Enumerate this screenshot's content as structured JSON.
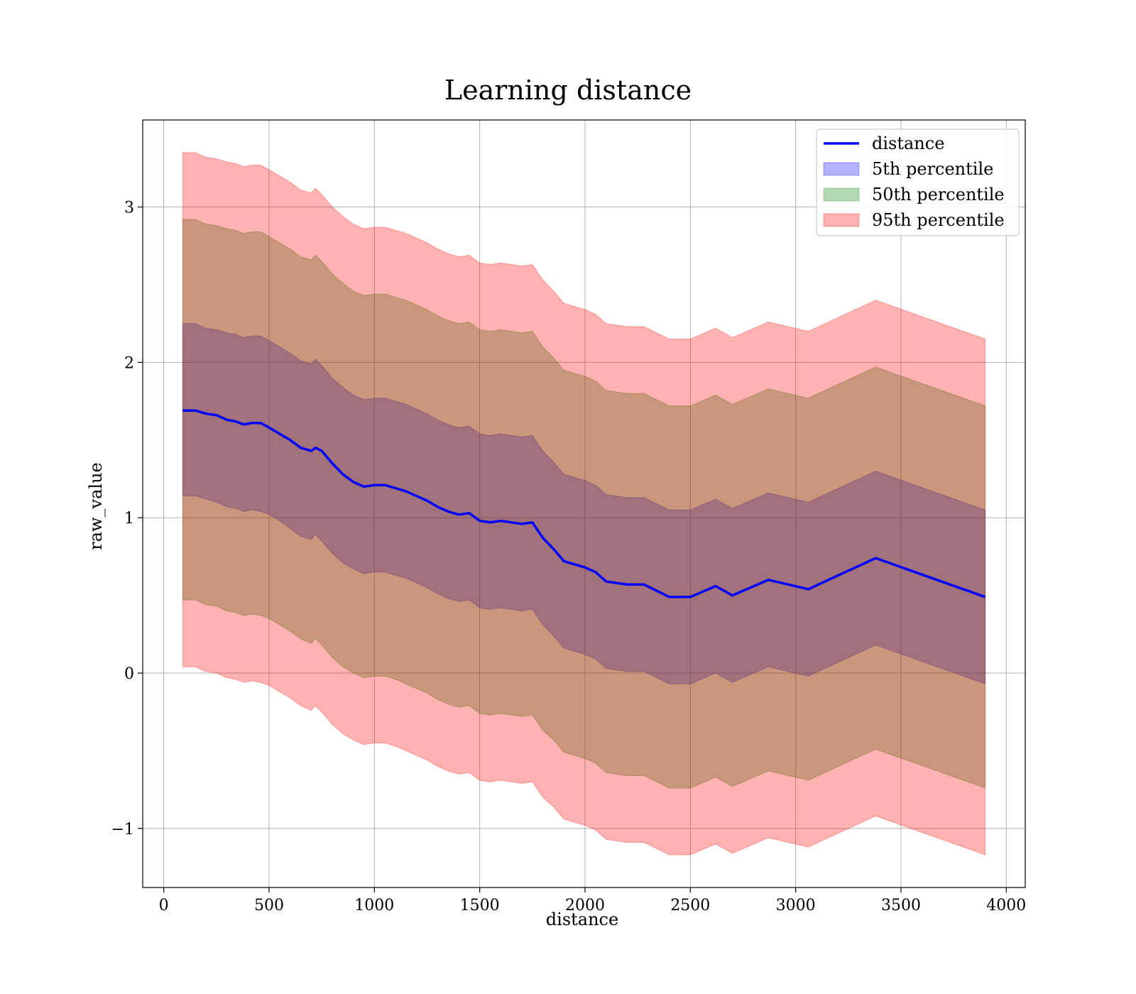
{
  "chart_data": {
    "type": "area",
    "title": "Learning distance",
    "xlabel": "distance",
    "ylabel": "raw_value",
    "xlim": [
      -100,
      4090
    ],
    "ylim": [
      -1.38,
      3.56
    ],
    "grid": true,
    "legend_position": "upper right",
    "x_ticks": [
      0,
      500,
      1000,
      1500,
      2000,
      2500,
      3000,
      3500,
      4000
    ],
    "x_tick_labels": [
      "0",
      "500",
      "1000",
      "1500",
      "2000",
      "2500",
      "3000",
      "3500",
      "4000"
    ],
    "y_ticks": [
      -1,
      0,
      1,
      2,
      3
    ],
    "y_tick_labels": [
      "−1",
      "0",
      "1",
      "2",
      "3"
    ],
    "colors": {
      "line": "#0000ff",
      "band_5th": "#0000ff",
      "band_50th": "#008000",
      "band_95th": "#ff0000"
    },
    "legend": [
      {
        "key": "distance",
        "label": "distance",
        "kind": "line",
        "color": "#0000ff"
      },
      {
        "key": "p5",
        "label": "5th percentile",
        "kind": "patch",
        "color": "#0000ff"
      },
      {
        "key": "p50",
        "label": "50th percentile",
        "kind": "patch",
        "color": "#008000"
      },
      {
        "key": "p95",
        "label": "95th percentile",
        "kind": "patch",
        "color": "#ff0000"
      }
    ],
    "x": [
      90,
      150,
      200,
      250,
      300,
      340,
      380,
      420,
      460,
      500,
      550,
      600,
      650,
      700,
      720,
      750,
      800,
      850,
      900,
      950,
      1000,
      1050,
      1100,
      1150,
      1200,
      1250,
      1300,
      1350,
      1400,
      1450,
      1500,
      1550,
      1600,
      1650,
      1700,
      1750,
      1800,
      1850,
      1900,
      1950,
      2000,
      2050,
      2100,
      2150,
      2200,
      2280,
      2400,
      2500,
      2620,
      2700,
      2870,
      3060,
      3380,
      3900
    ],
    "series": [
      {
        "name": "distance",
        "values": [
          1.69,
          1.69,
          1.67,
          1.66,
          1.63,
          1.62,
          1.6,
          1.61,
          1.61,
          1.58,
          1.54,
          1.5,
          1.45,
          1.43,
          1.45,
          1.43,
          1.35,
          1.28,
          1.23,
          1.2,
          1.21,
          1.21,
          1.19,
          1.17,
          1.14,
          1.11,
          1.07,
          1.04,
          1.02,
          1.03,
          0.98,
          0.97,
          0.98,
          0.97,
          0.96,
          0.97,
          0.87,
          0.8,
          0.72,
          0.7,
          0.68,
          0.65,
          0.59,
          0.58,
          0.57,
          0.57,
          0.49,
          0.49,
          0.56,
          0.5,
          0.6,
          0.54,
          0.74,
          0.49
        ]
      },
      {
        "name": "5th percentile",
        "values": [
          1.14,
          1.14,
          1.12,
          1.1,
          1.07,
          1.06,
          1.04,
          1.05,
          1.04,
          1.02,
          0.98,
          0.93,
          0.88,
          0.86,
          0.89,
          0.85,
          0.77,
          0.71,
          0.67,
          0.64,
          0.65,
          0.65,
          0.63,
          0.61,
          0.58,
          0.55,
          0.51,
          0.48,
          0.46,
          0.47,
          0.42,
          0.41,
          0.42,
          0.41,
          0.4,
          0.41,
          0.31,
          0.24,
          0.16,
          0.14,
          0.12,
          0.09,
          0.03,
          0.02,
          0.01,
          0.01,
          -0.07,
          -0.07,
          0.0,
          -0.06,
          0.04,
          -0.02,
          0.18,
          -0.07
        ]
      },
      {
        "name": "50th percentile",
        "values": [
          0.47,
          0.47,
          0.44,
          0.43,
          0.4,
          0.39,
          0.37,
          0.38,
          0.37,
          0.35,
          0.31,
          0.27,
          0.22,
          0.19,
          0.22,
          0.18,
          0.1,
          0.04,
          0.0,
          -0.03,
          -0.02,
          -0.02,
          -0.04,
          -0.07,
          -0.1,
          -0.13,
          -0.17,
          -0.2,
          -0.22,
          -0.21,
          -0.26,
          -0.27,
          -0.26,
          -0.27,
          -0.28,
          -0.27,
          -0.37,
          -0.43,
          -0.51,
          -0.53,
          -0.55,
          -0.58,
          -0.64,
          -0.65,
          -0.66,
          -0.66,
          -0.74,
          -0.74,
          -0.67,
          -0.73,
          -0.63,
          -0.69,
          -0.49,
          -0.74
        ]
      },
      {
        "name": "95th percentile",
        "values": [
          0.04,
          0.04,
          0.01,
          0.0,
          -0.03,
          -0.04,
          -0.06,
          -0.05,
          -0.06,
          -0.08,
          -0.12,
          -0.16,
          -0.21,
          -0.24,
          -0.21,
          -0.25,
          -0.33,
          -0.39,
          -0.43,
          -0.46,
          -0.45,
          -0.45,
          -0.47,
          -0.5,
          -0.53,
          -0.56,
          -0.6,
          -0.63,
          -0.65,
          -0.64,
          -0.69,
          -0.7,
          -0.69,
          -0.7,
          -0.71,
          -0.7,
          -0.8,
          -0.86,
          -0.94,
          -0.96,
          -0.98,
          -1.01,
          -1.07,
          -1.08,
          -1.09,
          -1.09,
          -1.17,
          -1.17,
          -1.1,
          -1.16,
          -1.06,
          -1.12,
          -0.92,
          -1.17
        ]
      }
    ],
    "upper": {
      "5th percentile": [
        2.25,
        2.25,
        2.22,
        2.21,
        2.19,
        2.18,
        2.16,
        2.17,
        2.17,
        2.14,
        2.1,
        2.06,
        2.01,
        1.99,
        2.02,
        1.98,
        1.9,
        1.84,
        1.79,
        1.76,
        1.77,
        1.77,
        1.75,
        1.73,
        1.7,
        1.67,
        1.63,
        1.6,
        1.58,
        1.59,
        1.54,
        1.53,
        1.54,
        1.53,
        1.52,
        1.53,
        1.43,
        1.36,
        1.28,
        1.26,
        1.24,
        1.21,
        1.15,
        1.14,
        1.13,
        1.13,
        1.05,
        1.05,
        1.12,
        1.06,
        1.16,
        1.1,
        1.3,
        1.05
      ],
      "50th percentile": [
        2.92,
        2.92,
        2.89,
        2.88,
        2.86,
        2.85,
        2.83,
        2.84,
        2.84,
        2.81,
        2.77,
        2.73,
        2.68,
        2.66,
        2.69,
        2.65,
        2.57,
        2.51,
        2.46,
        2.43,
        2.44,
        2.44,
        2.42,
        2.4,
        2.37,
        2.34,
        2.3,
        2.27,
        2.25,
        2.26,
        2.21,
        2.2,
        2.21,
        2.2,
        2.19,
        2.2,
        2.1,
        2.03,
        1.95,
        1.93,
        1.91,
        1.88,
        1.82,
        1.81,
        1.8,
        1.8,
        1.72,
        1.72,
        1.79,
        1.73,
        1.83,
        1.77,
        1.97,
        1.72
      ],
      "95th percentile": [
        3.35,
        3.35,
        3.32,
        3.31,
        3.29,
        3.28,
        3.26,
        3.27,
        3.27,
        3.24,
        3.2,
        3.16,
        3.11,
        3.09,
        3.12,
        3.08,
        3.0,
        2.94,
        2.89,
        2.86,
        2.87,
        2.87,
        2.85,
        2.83,
        2.8,
        2.77,
        2.73,
        2.7,
        2.68,
        2.69,
        2.64,
        2.63,
        2.64,
        2.63,
        2.62,
        2.63,
        2.53,
        2.46,
        2.38,
        2.36,
        2.34,
        2.31,
        2.25,
        2.24,
        2.23,
        2.23,
        2.15,
        2.15,
        2.22,
        2.16,
        2.26,
        2.2,
        2.4,
        2.15
      ]
    }
  }
}
